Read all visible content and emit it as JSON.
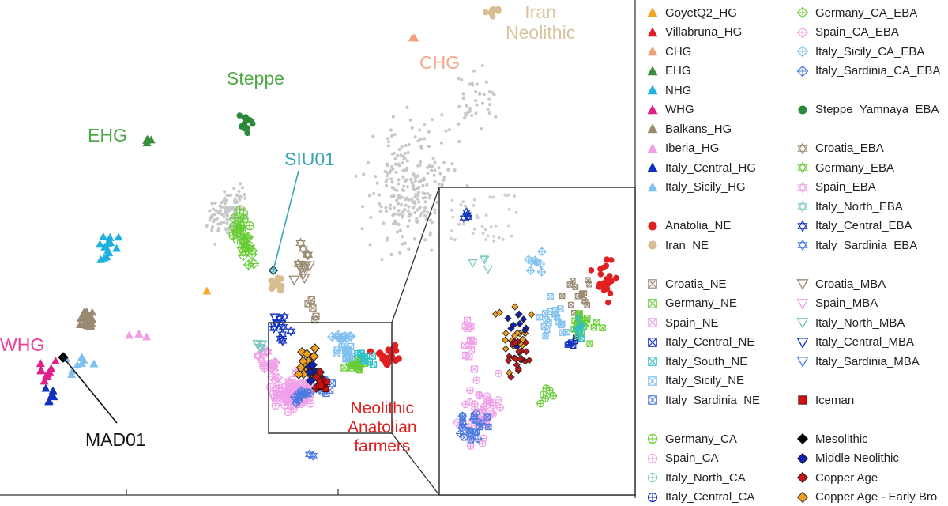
{
  "chart_data": {
    "type": "scatter",
    "region_labels": [
      {
        "key": "iran",
        "text": "Iran\nNeolithic",
        "color": "#d8c4a0"
      },
      {
        "key": "chg",
        "text": "CHG",
        "color": "#f0a98a"
      },
      {
        "key": "steppe",
        "text": "Steppe",
        "color": "#4fa84a"
      },
      {
        "key": "ehg",
        "text": "EHG",
        "color": "#4fa84a"
      },
      {
        "key": "siu01",
        "text": "SIU01",
        "color": "#3aa6b5"
      },
      {
        "key": "whg",
        "text": "WHG",
        "color": "#e8409a"
      },
      {
        "key": "mad01",
        "text": "MAD01",
        "color": "#111111"
      },
      {
        "key": "anatolian",
        "text": "Neolithic\nAnatolian\nfarmers",
        "color": "#e02020"
      }
    ],
    "legend": [
      {
        "label": "GoyetQ2_HG",
        "marker": "triangle",
        "color": "#f5a623"
      },
      {
        "label": "Villabruna_HG",
        "marker": "triangle",
        "color": "#e02020"
      },
      {
        "label": "CHG",
        "marker": "triangle",
        "color": "#f0a07a"
      },
      {
        "label": "EHG",
        "marker": "triangle",
        "color": "#3a8f3a"
      },
      {
        "label": "NHG",
        "marker": "triangle",
        "color": "#20b0e0"
      },
      {
        "label": "WHG",
        "marker": "triangle",
        "color": "#e0208a"
      },
      {
        "label": "Balkans_HG",
        "marker": "triangle",
        "color": "#9a8a72"
      },
      {
        "label": "Iberia_HG",
        "marker": "triangle",
        "color": "#f0a0e8"
      },
      {
        "label": "Italy_Central_HG",
        "marker": "triangle",
        "color": "#1030c0"
      },
      {
        "label": "Italy_Sicily_HG",
        "marker": "triangle",
        "color": "#80c0f0"
      },
      {
        "label": "Anatolia_NE",
        "marker": "circle",
        "color": "#e02020"
      },
      {
        "label": "Iran_NE",
        "marker": "circle",
        "color": "#d8bc92"
      },
      {
        "label": "Croatia_NE",
        "marker": "boxx",
        "color": "#9a8a72"
      },
      {
        "label": "Germany_NE",
        "marker": "boxx",
        "color": "#66cc33"
      },
      {
        "label": "Spain_NE",
        "marker": "boxx",
        "color": "#f0a0e8"
      },
      {
        "label": "Italy_Central_NE",
        "marker": "boxx",
        "color": "#1030c0"
      },
      {
        "label": "Italy_South_NE",
        "marker": "boxx",
        "color": "#30c0c8"
      },
      {
        "label": "Italy_Sicily_NE",
        "marker": "boxx",
        "color": "#80c0f0"
      },
      {
        "label": "Italy_Sardinia_NE",
        "marker": "boxx",
        "color": "#4a7ae0"
      },
      {
        "label": "Germany_CA",
        "marker": "circleplus",
        "color": "#66cc33"
      },
      {
        "label": "Spain_CA",
        "marker": "circleplus",
        "color": "#f0a0e8"
      },
      {
        "label": "Italy_North_CA",
        "marker": "circleplus",
        "color": "#80c8c0"
      },
      {
        "label": "Italy_Central_CA",
        "marker": "circleplus",
        "color": "#1030c0"
      },
      {
        "label": "Germany_CA_EBA",
        "marker": "diamondplus",
        "color": "#66cc33"
      },
      {
        "label": "Spain_CA_EBA",
        "marker": "diamondplus",
        "color": "#f0a0e8"
      },
      {
        "label": "Italy_Sicily_CA_EBA",
        "marker": "diamondplus",
        "color": "#80c0f0"
      },
      {
        "label": "Italy_Sardinia_CA_EBA",
        "marker": "diamondplus",
        "color": "#4a7ae0"
      },
      {
        "label": "Steppe_Yamnaya_EBA",
        "marker": "circle",
        "color": "#2a8a3a"
      },
      {
        "label": "Croatia_EBA",
        "marker": "star",
        "color": "#9a8a72"
      },
      {
        "label": "Germany_EBA",
        "marker": "star",
        "color": "#66cc33"
      },
      {
        "label": "Spain_EBA",
        "marker": "star",
        "color": "#f0a0e8"
      },
      {
        "label": "Italy_North_EBA",
        "marker": "star",
        "color": "#80c8c0"
      },
      {
        "label": "Italy_Central_EBA",
        "marker": "star",
        "color": "#1030c0"
      },
      {
        "label": "Italy_Sardinia_EBA",
        "marker": "star",
        "color": "#4a7ae0"
      },
      {
        "label": "Croatia_MBA",
        "marker": "invtriangle",
        "color": "#9a8a72"
      },
      {
        "label": "Spain_MBA",
        "marker": "invtriangle",
        "color": "#f0a0e8"
      },
      {
        "label": "Italy_North_MBA",
        "marker": "invtriangle",
        "color": "#80c8c0"
      },
      {
        "label": "Italy_Central_MBA",
        "marker": "invtriangle",
        "color": "#1030c0"
      },
      {
        "label": "Italy_Sardinia_MBA",
        "marker": "invtriangle",
        "color": "#4a7ae0"
      },
      {
        "label": "Iceman",
        "marker": "square",
        "color": "#d01010"
      },
      {
        "label": "Mesolithic",
        "marker": "diamond",
        "color": "#000000"
      },
      {
        "label": "Middle Neolithic",
        "marker": "diamond",
        "color": "#1020b0"
      },
      {
        "label": "Copper Age",
        "marker": "diamond",
        "color": "#c01818"
      },
      {
        "label": "Copper Age - Early Bro",
        "marker": "diamond",
        "color": "#f0a020"
      }
    ],
    "grid": false,
    "legend_placement": "right"
  }
}
